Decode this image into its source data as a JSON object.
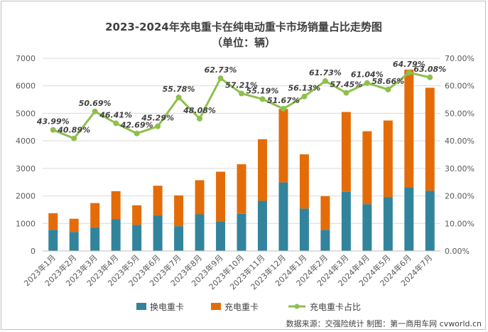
{
  "chart_data": {
    "type": "bar",
    "title": "2023-2024年充电重卡在纯电动重卡市场销量占比走势图",
    "subtitle": "（单位：辆）",
    "categories": [
      "2023年1月",
      "2023年2月",
      "2023年3月",
      "2023年4月",
      "2023年5月",
      "2023年6月",
      "2023年7月",
      "2023年8月",
      "2023年9月",
      "2023年10月",
      "2023年11月",
      "2023年12月",
      "2024年1月",
      "2024年2月",
      "2024年3月",
      "2024年4月",
      "2024年5月",
      "2024年6月",
      "2024年7月"
    ],
    "series": [
      {
        "name": "换电重卡",
        "type": "bar",
        "stack": "total",
        "color": "#31849b",
        "values": [
          770,
          690,
          860,
          1160,
          950,
          1290,
          900,
          1330,
          1080,
          1350,
          1820,
          2490,
          1540,
          770,
          2150,
          1700,
          1960,
          2320,
          2190
        ]
      },
      {
        "name": "充电重卡",
        "type": "bar",
        "stack": "total",
        "color": "#e36c09",
        "values": [
          600,
          480,
          880,
          1010,
          710,
          1080,
          1120,
          1240,
          1800,
          1800,
          2240,
          2670,
          1970,
          1220,
          2900,
          2650,
          2780,
          4270,
          3740
        ]
      },
      {
        "name": "充电重卡占比",
        "type": "line",
        "axis": "right",
        "color": "#8fbf4d",
        "values": [
          43.99,
          40.89,
          50.69,
          46.41,
          42.69,
          45.29,
          55.78,
          48.08,
          62.73,
          57.21,
          55.19,
          51.67,
          56.13,
          61.73,
          57.45,
          61.04,
          58.66,
          64.79,
          63.08
        ],
        "labels": [
          "43.99%",
          "40.89%",
          "50.69%",
          "46.41%",
          "42.69%",
          "45.29%",
          "55.78%",
          "48.08%",
          "62.73%",
          "57.21%",
          "55.19%",
          "51.67%",
          "56.13%",
          "61.73%",
          "57.45%",
          "61.04%",
          "58.66%",
          "64.79%",
          "63.08%"
        ]
      }
    ],
    "ylim": [
      0,
      7000
    ],
    "yticks": [
      "0",
      "1000",
      "2000",
      "3000",
      "4000",
      "5000",
      "6000",
      "7000"
    ],
    "y2lim": [
      0,
      70
    ],
    "y2ticks": [
      "0.00%",
      "10.00%",
      "20.00%",
      "30.00%",
      "40.00%",
      "50.00%",
      "60.00%",
      "70.00%"
    ],
    "legend_position": "bottom",
    "grid": true,
    "source": "数据来源：交强险统计  制图：第一商用车网 cvworld.cn"
  }
}
